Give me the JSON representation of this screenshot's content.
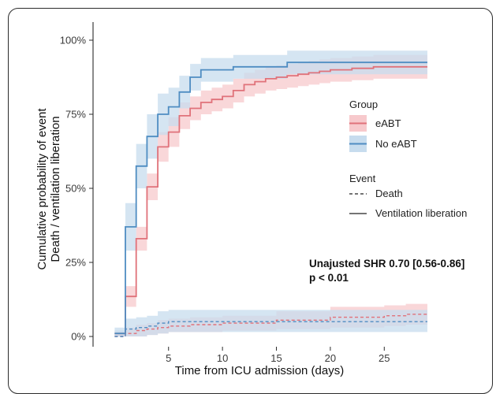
{
  "chart_data": {
    "type": "line",
    "step": true,
    "xlabel": "Time from ICU admission (days)",
    "ylabel_lines": [
      "Cumulative probability of event",
      "Death / ventilation liberation"
    ],
    "xlim": [
      -2,
      29
    ],
    "ylim": [
      0,
      1
    ],
    "x_ticks": [
      5,
      10,
      15,
      20,
      25
    ],
    "x_tick_labels": [
      "5",
      "10",
      "15",
      "20",
      "25"
    ],
    "y_ticks": [
      0,
      0.25,
      0.5,
      0.75,
      1.0
    ],
    "y_tick_labels": [
      "0%",
      "25%",
      "50%",
      "75%",
      "100%"
    ],
    "grid": false,
    "legend_position": "right",
    "legend": {
      "group_title": "Group",
      "groups": [
        {
          "name": "eABT",
          "color": "#e0727a",
          "band_color": "#f7c9cc"
        },
        {
          "name": "No eABT",
          "color": "#4f8dc2",
          "band_color": "#c7dcee"
        }
      ],
      "event_title": "Event",
      "events": [
        {
          "name": "Death",
          "linestyle": "dashed"
        },
        {
          "name": "Ventilation liberation",
          "linestyle": "solid"
        }
      ]
    },
    "annotation": {
      "line1": "Unajusted SHR 0.70 [0.56-0.86]",
      "line2": "p < 0.01"
    },
    "series": [
      {
        "name": "eABT",
        "event": "Ventilation liberation",
        "x": [
          0,
          1,
          2,
          3,
          4,
          5,
          6,
          7,
          8,
          9,
          10,
          11,
          12,
          13,
          14,
          15,
          16,
          17,
          18,
          19,
          20,
          22,
          24,
          26,
          29
        ],
        "y": [
          0.01,
          0.135,
          0.33,
          0.505,
          0.64,
          0.69,
          0.745,
          0.77,
          0.79,
          0.8,
          0.81,
          0.83,
          0.85,
          0.86,
          0.87,
          0.875,
          0.88,
          0.885,
          0.89,
          0.895,
          0.9,
          0.905,
          0.91,
          0.91,
          0.91
        ],
        "lower": [
          0.0,
          0.1,
          0.29,
          0.46,
          0.59,
          0.64,
          0.7,
          0.73,
          0.75,
          0.76,
          0.77,
          0.79,
          0.81,
          0.82,
          0.83,
          0.835,
          0.84,
          0.845,
          0.85,
          0.855,
          0.86,
          0.865,
          0.87,
          0.87,
          0.87
        ],
        "upper": [
          0.02,
          0.17,
          0.37,
          0.55,
          0.69,
          0.74,
          0.79,
          0.81,
          0.83,
          0.84,
          0.85,
          0.87,
          0.89,
          0.9,
          0.91,
          0.915,
          0.92,
          0.925,
          0.93,
          0.935,
          0.94,
          0.945,
          0.95,
          0.95,
          0.95
        ]
      },
      {
        "name": "No eABT",
        "event": "Ventilation liberation",
        "x": [
          0,
          1,
          2,
          3,
          4,
          5,
          6,
          7,
          8,
          11,
          16,
          29
        ],
        "y": [
          0.01,
          0.37,
          0.575,
          0.675,
          0.75,
          0.775,
          0.825,
          0.875,
          0.9,
          0.91,
          0.925,
          0.925
        ],
        "lower": [
          0.0,
          0.29,
          0.5,
          0.6,
          0.68,
          0.71,
          0.77,
          0.83,
          0.86,
          0.87,
          0.885,
          0.885
        ],
        "upper": [
          0.02,
          0.45,
          0.65,
          0.75,
          0.82,
          0.84,
          0.88,
          0.92,
          0.94,
          0.95,
          0.965,
          0.965
        ]
      },
      {
        "name": "eABT",
        "event": "Death",
        "x": [
          0,
          1,
          2,
          3,
          4,
          5,
          7,
          10,
          15,
          20,
          25,
          27,
          29
        ],
        "y": [
          0.0,
          0.01,
          0.02,
          0.025,
          0.03,
          0.035,
          0.04,
          0.045,
          0.055,
          0.065,
          0.07,
          0.075,
          0.08
        ],
        "lower": [
          0.0,
          0.0,
          0.0,
          0.005,
          0.01,
          0.015,
          0.015,
          0.02,
          0.025,
          0.03,
          0.035,
          0.04,
          0.045
        ],
        "upper": [
          0.01,
          0.03,
          0.04,
          0.045,
          0.055,
          0.06,
          0.065,
          0.07,
          0.085,
          0.1,
          0.105,
          0.11,
          0.115
        ]
      },
      {
        "name": "No eABT",
        "event": "Death",
        "x": [
          0,
          1,
          2,
          3,
          4,
          5,
          10,
          15,
          29
        ],
        "y": [
          0.0,
          0.025,
          0.03,
          0.035,
          0.045,
          0.05,
          0.05,
          0.05,
          0.05
        ],
        "lower": [
          0.0,
          0.0,
          0.0,
          0.005,
          0.01,
          0.015,
          0.015,
          0.015,
          0.015
        ],
        "upper": [
          0.03,
          0.06,
          0.065,
          0.07,
          0.085,
          0.09,
          0.09,
          0.09,
          0.09
        ]
      }
    ]
  }
}
